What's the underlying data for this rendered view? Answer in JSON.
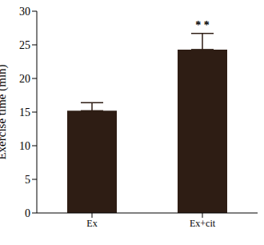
{
  "chart_data": {
    "type": "bar",
    "categories": [
      "Ex",
      "Ex+cit"
    ],
    "values": [
      15.2,
      24.3
    ],
    "errors": [
      1.2,
      2.4
    ],
    "color": "#2e1d14",
    "y_label": "Exercise time (min)",
    "ylim": [
      0,
      30
    ],
    "yticks": [
      0,
      5,
      10,
      15,
      20,
      25,
      30
    ],
    "grid": false,
    "annotations": [
      {
        "category": "Ex+cit",
        "text": "* *"
      }
    ]
  }
}
